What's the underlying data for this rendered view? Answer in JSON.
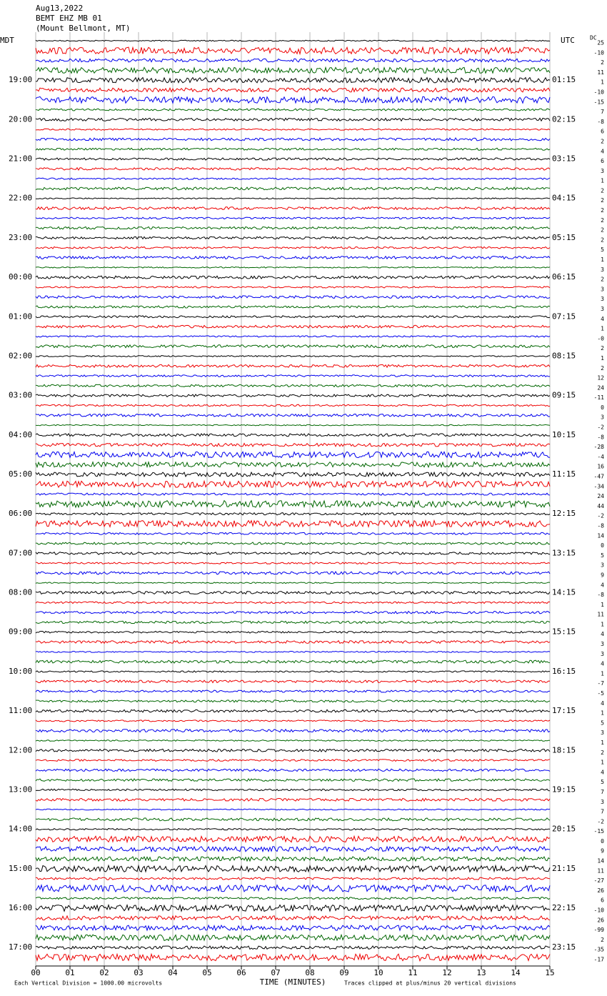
{
  "header": {
    "date": "Aug13,2022",
    "station": "BEMT EHZ MB 01",
    "location": "(Mount Bellmont, MT)"
  },
  "left_zone": "MDT",
  "right_zone": "UTC",
  "offset_title": "DC",
  "left_times": [
    "19:00",
    "20:00",
    "21:00",
    "22:00",
    "23:00",
    "00:00",
    "01:00",
    "02:00",
    "03:00",
    "04:00",
    "05:00",
    "06:00",
    "07:00",
    "08:00",
    "09:00",
    "10:00",
    "11:00",
    "12:00",
    "13:00",
    "14:00",
    "15:00",
    "16:00",
    "17:00"
  ],
  "right_times": [
    "01:15",
    "02:15",
    "03:15",
    "04:15",
    "05:15",
    "06:15",
    "07:15",
    "08:15",
    "09:15",
    "10:15",
    "11:15",
    "12:15",
    "13:15",
    "14:15",
    "15:15",
    "16:15",
    "17:15",
    "18:15",
    "19:15",
    "20:15",
    "21:15",
    "22:15",
    "23:15"
  ],
  "dc_offsets": [
    "25",
    "-10",
    "2",
    "11",
    "1",
    "-10",
    "-15",
    "7",
    "-8",
    "6",
    "2",
    "4",
    "6",
    "3",
    "1",
    "2",
    "2",
    "2",
    "2",
    "2",
    "2",
    "5",
    "1",
    "3",
    "2",
    "3",
    "3",
    "3",
    "4",
    "1",
    "-0",
    "2",
    "1",
    "2",
    "12",
    "24",
    "-11",
    "0",
    "3",
    "-2",
    "-8",
    "-28",
    "-4",
    "16",
    "-47",
    "-34",
    "24",
    "44",
    "-2",
    "-8",
    "14",
    "0",
    "5",
    "3",
    "9",
    "4",
    "-8",
    "1",
    "11",
    "1",
    "4",
    "3",
    "3",
    "4",
    "1",
    "-7",
    "-5",
    "4",
    "1",
    "5",
    "3",
    "1",
    "2",
    "1",
    "4",
    "5",
    "7",
    "3",
    "7",
    "-2",
    "-15",
    "0",
    "9",
    "14",
    "11",
    "-27",
    "26",
    "6",
    "-10",
    "26",
    "-99",
    "2",
    "-35",
    "-17"
  ],
  "x_ticks": [
    "00",
    "01",
    "02",
    "03",
    "04",
    "05",
    "06",
    "07",
    "08",
    "09",
    "10",
    "11",
    "12",
    "13",
    "14",
    "15"
  ],
  "x_label": "TIME (MINUTES)",
  "scale_note": "Each Vertical Division = 1000.00 microvolts",
  "clip_note": "Traces clipped at plus/minus 20 vertical divisions"
}
